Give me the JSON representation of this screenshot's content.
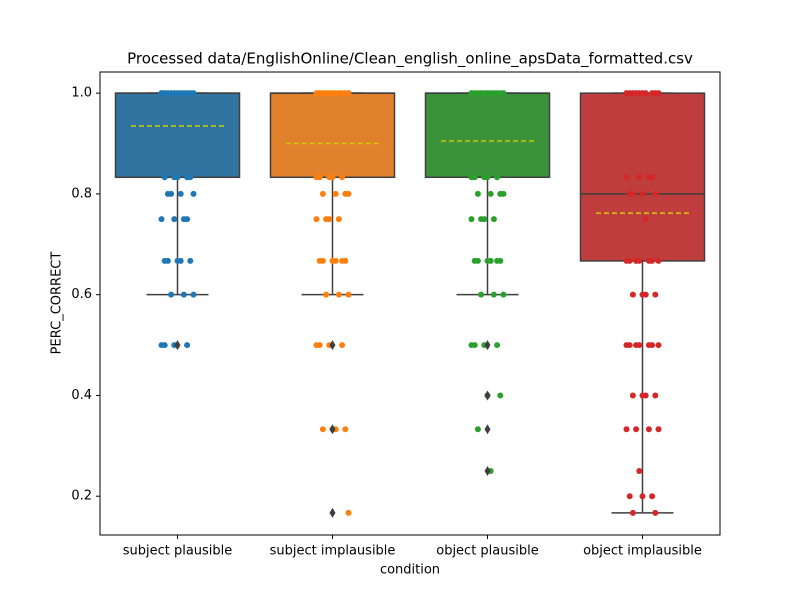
{
  "chart_data": {
    "type": "box",
    "title": "Processed data/EnglishOnline/Clean_english_online_apsData_formatted.csv",
    "x_label": "condition",
    "y_label": "PERC_CORRECT",
    "categories": [
      "subject plausible",
      "subject implausible",
      "object plausible",
      "object implausible"
    ],
    "ylim": [
      0.123,
      1.042
    ],
    "yticks": [
      0.2,
      0.4,
      0.6,
      0.8,
      {
        "value": 1,
        "label": "1.0"
      }
    ],
    "mean_color": "#cccc00",
    "boxes": [
      {
        "color": "#3274a1",
        "point_color": "#1f77b4",
        "q1": 0.833,
        "median": 1,
        "q3": 1,
        "whislo": 0.6,
        "whishi": 1,
        "mean": 0.935,
        "fliers": [
          0.5
        ],
        "points": [
          1,
          1,
          1,
          1,
          1,
          1,
          1,
          1,
          1,
          1,
          1,
          1,
          0.833,
          0.833,
          0.833,
          0.833,
          0.833,
          0.8,
          0.8,
          0.8,
          0.8,
          0.75,
          0.75,
          0.75,
          0.75,
          0.667,
          0.667,
          0.667,
          0.667,
          0.667,
          0.6,
          0.6,
          0.6,
          0.5,
          0.5,
          0.5,
          0.5
        ]
      },
      {
        "color": "#e1812c",
        "point_color": "#ff7f0e",
        "q1": 0.833,
        "median": 1,
        "q3": 1,
        "whislo": 0.6,
        "whishi": 1,
        "mean": 0.9,
        "fliers": [
          0.5,
          0.333,
          0.167
        ],
        "points": [
          1,
          1,
          1,
          1,
          1,
          1,
          1,
          1,
          1,
          1,
          1,
          0.833,
          0.833,
          0.833,
          0.833,
          0.833,
          0.8,
          0.8,
          0.8,
          0.8,
          0.75,
          0.75,
          0.75,
          0.75,
          0.667,
          0.667,
          0.667,
          0.667,
          0.667,
          0.667,
          0.6,
          0.6,
          0.6,
          0.5,
          0.5,
          0.5,
          0.5,
          0.333,
          0.333,
          0.333,
          0.333,
          0.167
        ]
      },
      {
        "color": "#3a923a",
        "point_color": "#2ca02c",
        "q1": 0.833,
        "median": 1,
        "q3": 1,
        "whislo": 0.6,
        "whishi": 1,
        "mean": 0.905,
        "fliers": [
          0.5,
          0.4,
          0.333,
          0.25
        ],
        "points": [
          1,
          1,
          1,
          1,
          1,
          1,
          1,
          1,
          1,
          1,
          1,
          0.833,
          0.833,
          0.833,
          0.833,
          0.833,
          0.8,
          0.8,
          0.8,
          0.8,
          0.75,
          0.75,
          0.75,
          0.75,
          0.667,
          0.667,
          0.667,
          0.667,
          0.667,
          0.667,
          0.6,
          0.6,
          0.6,
          0.5,
          0.5,
          0.5,
          0.5,
          0.4,
          0.4,
          0.333,
          0.25
        ]
      },
      {
        "color": "#c03d3e",
        "point_color": "#d62728",
        "q1": 0.667,
        "median": 0.8,
        "q3": 1,
        "whislo": 0.167,
        "whishi": 1,
        "mean": 0.762,
        "fliers": [],
        "points": [
          1,
          1,
          1,
          1,
          1,
          1,
          1,
          1,
          1,
          1,
          0.833,
          0.833,
          0.833,
          0.833,
          0.8,
          0.8,
          0.8,
          0.8,
          0.75,
          0.667,
          0.667,
          0.667,
          0.667,
          0.667,
          0.667,
          0.667,
          0.6,
          0.6,
          0.6,
          0.6,
          0.5,
          0.5,
          0.5,
          0.5,
          0.5,
          0.5,
          0.5,
          0.4,
          0.4,
          0.4,
          0.4,
          0.333,
          0.333,
          0.333,
          0.333,
          0.25,
          0.2,
          0.2,
          0.2,
          0.167,
          0.167
        ]
      }
    ]
  }
}
